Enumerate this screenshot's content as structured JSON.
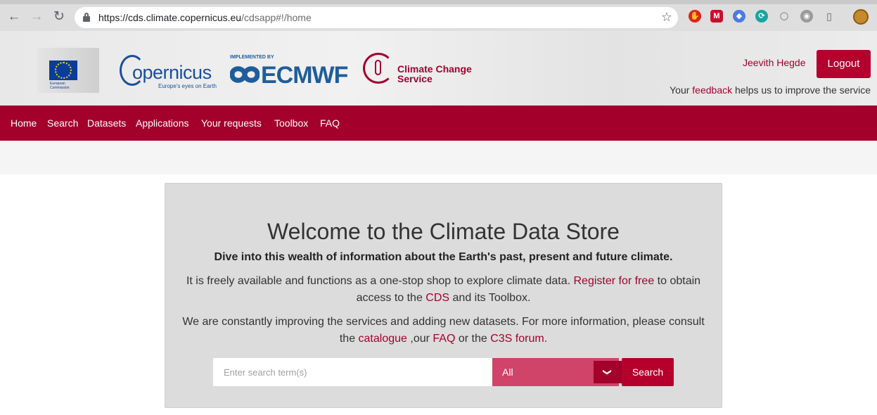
{
  "browser": {
    "url_host": "https://cds.climate.copernicus.eu",
    "url_path": "/cdsapp#!/home",
    "icons": [
      "back-arrow-icon",
      "forward-arrow-icon",
      "reload-icon",
      "lock-icon",
      "star-icon"
    ]
  },
  "header": {
    "eu_text": "European Commission",
    "copernicus_word": "opernicus",
    "copernicus_tagline": "Europe's eyes on Earth",
    "ecmwf_implemented": "IMPLEMENTED BY",
    "ecmwf_word": "ECMWF",
    "c3s_line1": "Climate Change",
    "c3s_line2": "Service",
    "user_name": "Jeevith Hegde",
    "logout_label": "Logout",
    "feedback_prefix": "Your ",
    "feedback_link": "feedback",
    "feedback_suffix": " helps us to improve the service"
  },
  "nav": {
    "items": [
      "Home",
      "Search",
      "Datasets",
      "Applications",
      "Your requests",
      "Toolbox",
      "FAQ"
    ]
  },
  "welcome": {
    "title": "Welcome to the Climate Data Store",
    "lead": "Dive into this wealth of information about the Earth's past, present and future climate.",
    "p1_a": "It is freely available and functions  as a one-stop shop to explore climate data. ",
    "p1_link1": "Register for free",
    "p1_b": " to obtain access to the ",
    "p1_link2": "CDS",
    "p1_c": " and its Toolbox.",
    "p2_a": "We are constantly improving the services and adding new datasets. For more information, please consult the ",
    "p2_link1": "catalogue",
    "p2_b": " ,our ",
    "p2_link2": "FAQ",
    "p2_c": " or the ",
    "p2_link3": "C3S forum.",
    "search_placeholder": "Enter search term(s)",
    "select_value": "All",
    "search_label": "Search"
  },
  "colors": {
    "brand": "#a3002c",
    "button": "#b5002e",
    "select": "#cf4468"
  }
}
